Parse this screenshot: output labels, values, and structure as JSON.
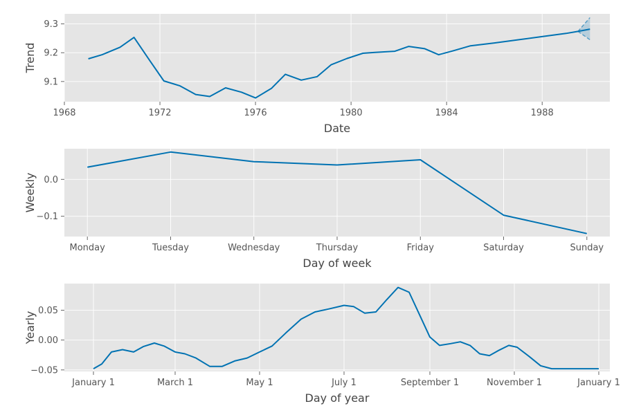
{
  "chart_data": [
    {
      "type": "line",
      "id": "trend",
      "xlabel": "Date",
      "ylabel": "Trend",
      "x_scale": "date",
      "xlim": [
        "1968-01-01",
        "1990-11-01"
      ],
      "ylim": [
        9.03,
        9.335
      ],
      "x_ticks": [
        {
          "value": "1968-01-01",
          "label": "1968"
        },
        {
          "value": "1972-01-01",
          "label": "1972"
        },
        {
          "value": "1976-01-01",
          "label": "1976"
        },
        {
          "value": "1980-01-01",
          "label": "1980"
        },
        {
          "value": "1984-01-01",
          "label": "1984"
        },
        {
          "value": "1988-01-01",
          "label": "1988"
        }
      ],
      "y_ticks": [
        {
          "value": 9.1,
          "label": "9.1"
        },
        {
          "value": 9.2,
          "label": "9.2"
        },
        {
          "value": 9.3,
          "label": "9.3"
        }
      ],
      "grid": true,
      "series": [
        {
          "x": [
            "1969-01-01",
            "1969-08-01",
            "1970-05-01",
            "1970-12-01",
            "1971-08-01",
            "1972-03-01",
            "1972-11-01",
            "1973-07-01",
            "1974-02-01",
            "1974-10-01",
            "1975-06-01",
            "1976-01-01",
            "1976-09-01",
            "1977-04-01",
            "1977-12-01",
            "1978-08-01",
            "1979-03-01",
            "1979-11-01",
            "1980-07-01",
            "1981-01-01",
            "1981-11-01",
            "1982-06-01",
            "1983-02-01",
            "1983-09-01",
            "1984-04-01",
            "1985-01-01",
            "1986-01-01",
            "1987-01-01",
            "1988-01-01",
            "1989-01-01",
            "1989-07-01",
            "1990-01-01"
          ],
          "values": [
            9.179,
            9.193,
            9.219,
            9.253,
            9.172,
            9.102,
            9.085,
            9.055,
            9.048,
            9.078,
            9.063,
            9.043,
            9.076,
            9.125,
            9.105,
            9.117,
            9.158,
            9.18,
            9.198,
            9.201,
            9.205,
            9.222,
            9.214,
            9.193,
            9.206,
            9.224,
            9.234,
            9.245,
            9.256,
            9.267,
            9.274,
            9.282
          ]
        }
      ],
      "uncertainty": {
        "x": [
          "1989-07-01",
          "1990-01-01"
        ],
        "upper": [
          9.274,
          9.322
        ],
        "lower": [
          9.274,
          9.245
        ]
      }
    },
    {
      "type": "line",
      "id": "weekly",
      "xlabel": "Day of week",
      "ylabel": "Weekly",
      "categories": [
        "Monday",
        "Tuesday",
        "Wednesday",
        "Thursday",
        "Friday",
        "Saturday",
        "Sunday"
      ],
      "ylim": [
        -0.155,
        0.083
      ],
      "y_ticks": [
        {
          "value": -0.1,
          "label": "−0.1"
        },
        {
          "value": 0.0,
          "label": "0.0"
        }
      ],
      "grid": true,
      "series": [
        {
          "values": [
            0.033,
            0.074,
            0.048,
            0.039,
            0.053,
            -0.097,
            -0.147
          ]
        }
      ]
    },
    {
      "type": "line",
      "id": "yearly",
      "xlabel": "Day of year",
      "ylabel": "Yearly",
      "x_scale": "date",
      "xlim": [
        "2016-12-11",
        "2018-01-09"
      ],
      "ylim": [
        -0.0525,
        0.0945
      ],
      "x_ticks": [
        {
          "value": "2017-01-01",
          "label": "January 1"
        },
        {
          "value": "2017-03-01",
          "label": "March 1"
        },
        {
          "value": "2017-05-01",
          "label": "May 1"
        },
        {
          "value": "2017-07-01",
          "label": "July 1"
        },
        {
          "value": "2017-09-01",
          "label": "September 1"
        },
        {
          "value": "2017-11-01",
          "label": "November 1"
        },
        {
          "value": "2018-01-01",
          "label": "January 1"
        }
      ],
      "y_ticks": [
        {
          "value": -0.05,
          "label": "−0.05"
        },
        {
          "value": 0.0,
          "label": "0.00"
        },
        {
          "value": 0.05,
          "label": "0.05"
        }
      ],
      "grid": true,
      "series": [
        {
          "x": [
            "2017-01-01",
            "2017-01-07",
            "2017-01-14",
            "2017-01-22",
            "2017-01-30",
            "2017-02-06",
            "2017-02-14",
            "2017-02-21",
            "2017-03-01",
            "2017-03-08",
            "2017-03-16",
            "2017-03-26",
            "2017-04-04",
            "2017-04-13",
            "2017-04-22",
            "2017-05-01",
            "2017-05-10",
            "2017-05-20",
            "2017-05-31",
            "2017-06-10",
            "2017-06-20",
            "2017-07-01",
            "2017-07-08",
            "2017-07-16",
            "2017-07-24",
            "2017-08-01",
            "2017-08-09",
            "2017-08-17",
            "2017-08-25",
            "2017-09-01",
            "2017-09-08",
            "2017-09-16",
            "2017-09-23",
            "2017-09-30",
            "2017-10-07",
            "2017-10-14",
            "2017-10-21",
            "2017-10-28",
            "2017-11-03",
            "2017-11-12",
            "2017-11-20",
            "2017-11-28",
            "2017-12-06",
            "2017-12-14",
            "2017-12-22",
            "2018-01-01"
          ],
          "values": [
            -0.048,
            -0.04,
            -0.02,
            -0.016,
            -0.02,
            -0.011,
            -0.005,
            -0.01,
            -0.02,
            -0.023,
            -0.03,
            -0.044,
            -0.044,
            -0.035,
            -0.03,
            -0.02,
            -0.01,
            0.012,
            0.035,
            0.047,
            0.052,
            0.058,
            0.056,
            0.045,
            0.047,
            0.068,
            0.088,
            0.08,
            0.04,
            0.005,
            -0.009,
            -0.006,
            -0.003,
            -0.009,
            -0.023,
            -0.026,
            -0.017,
            -0.009,
            -0.012,
            -0.028,
            -0.043,
            -0.048,
            -0.048,
            -0.048,
            -0.048,
            -0.048
          ]
        }
      ]
    }
  ]
}
